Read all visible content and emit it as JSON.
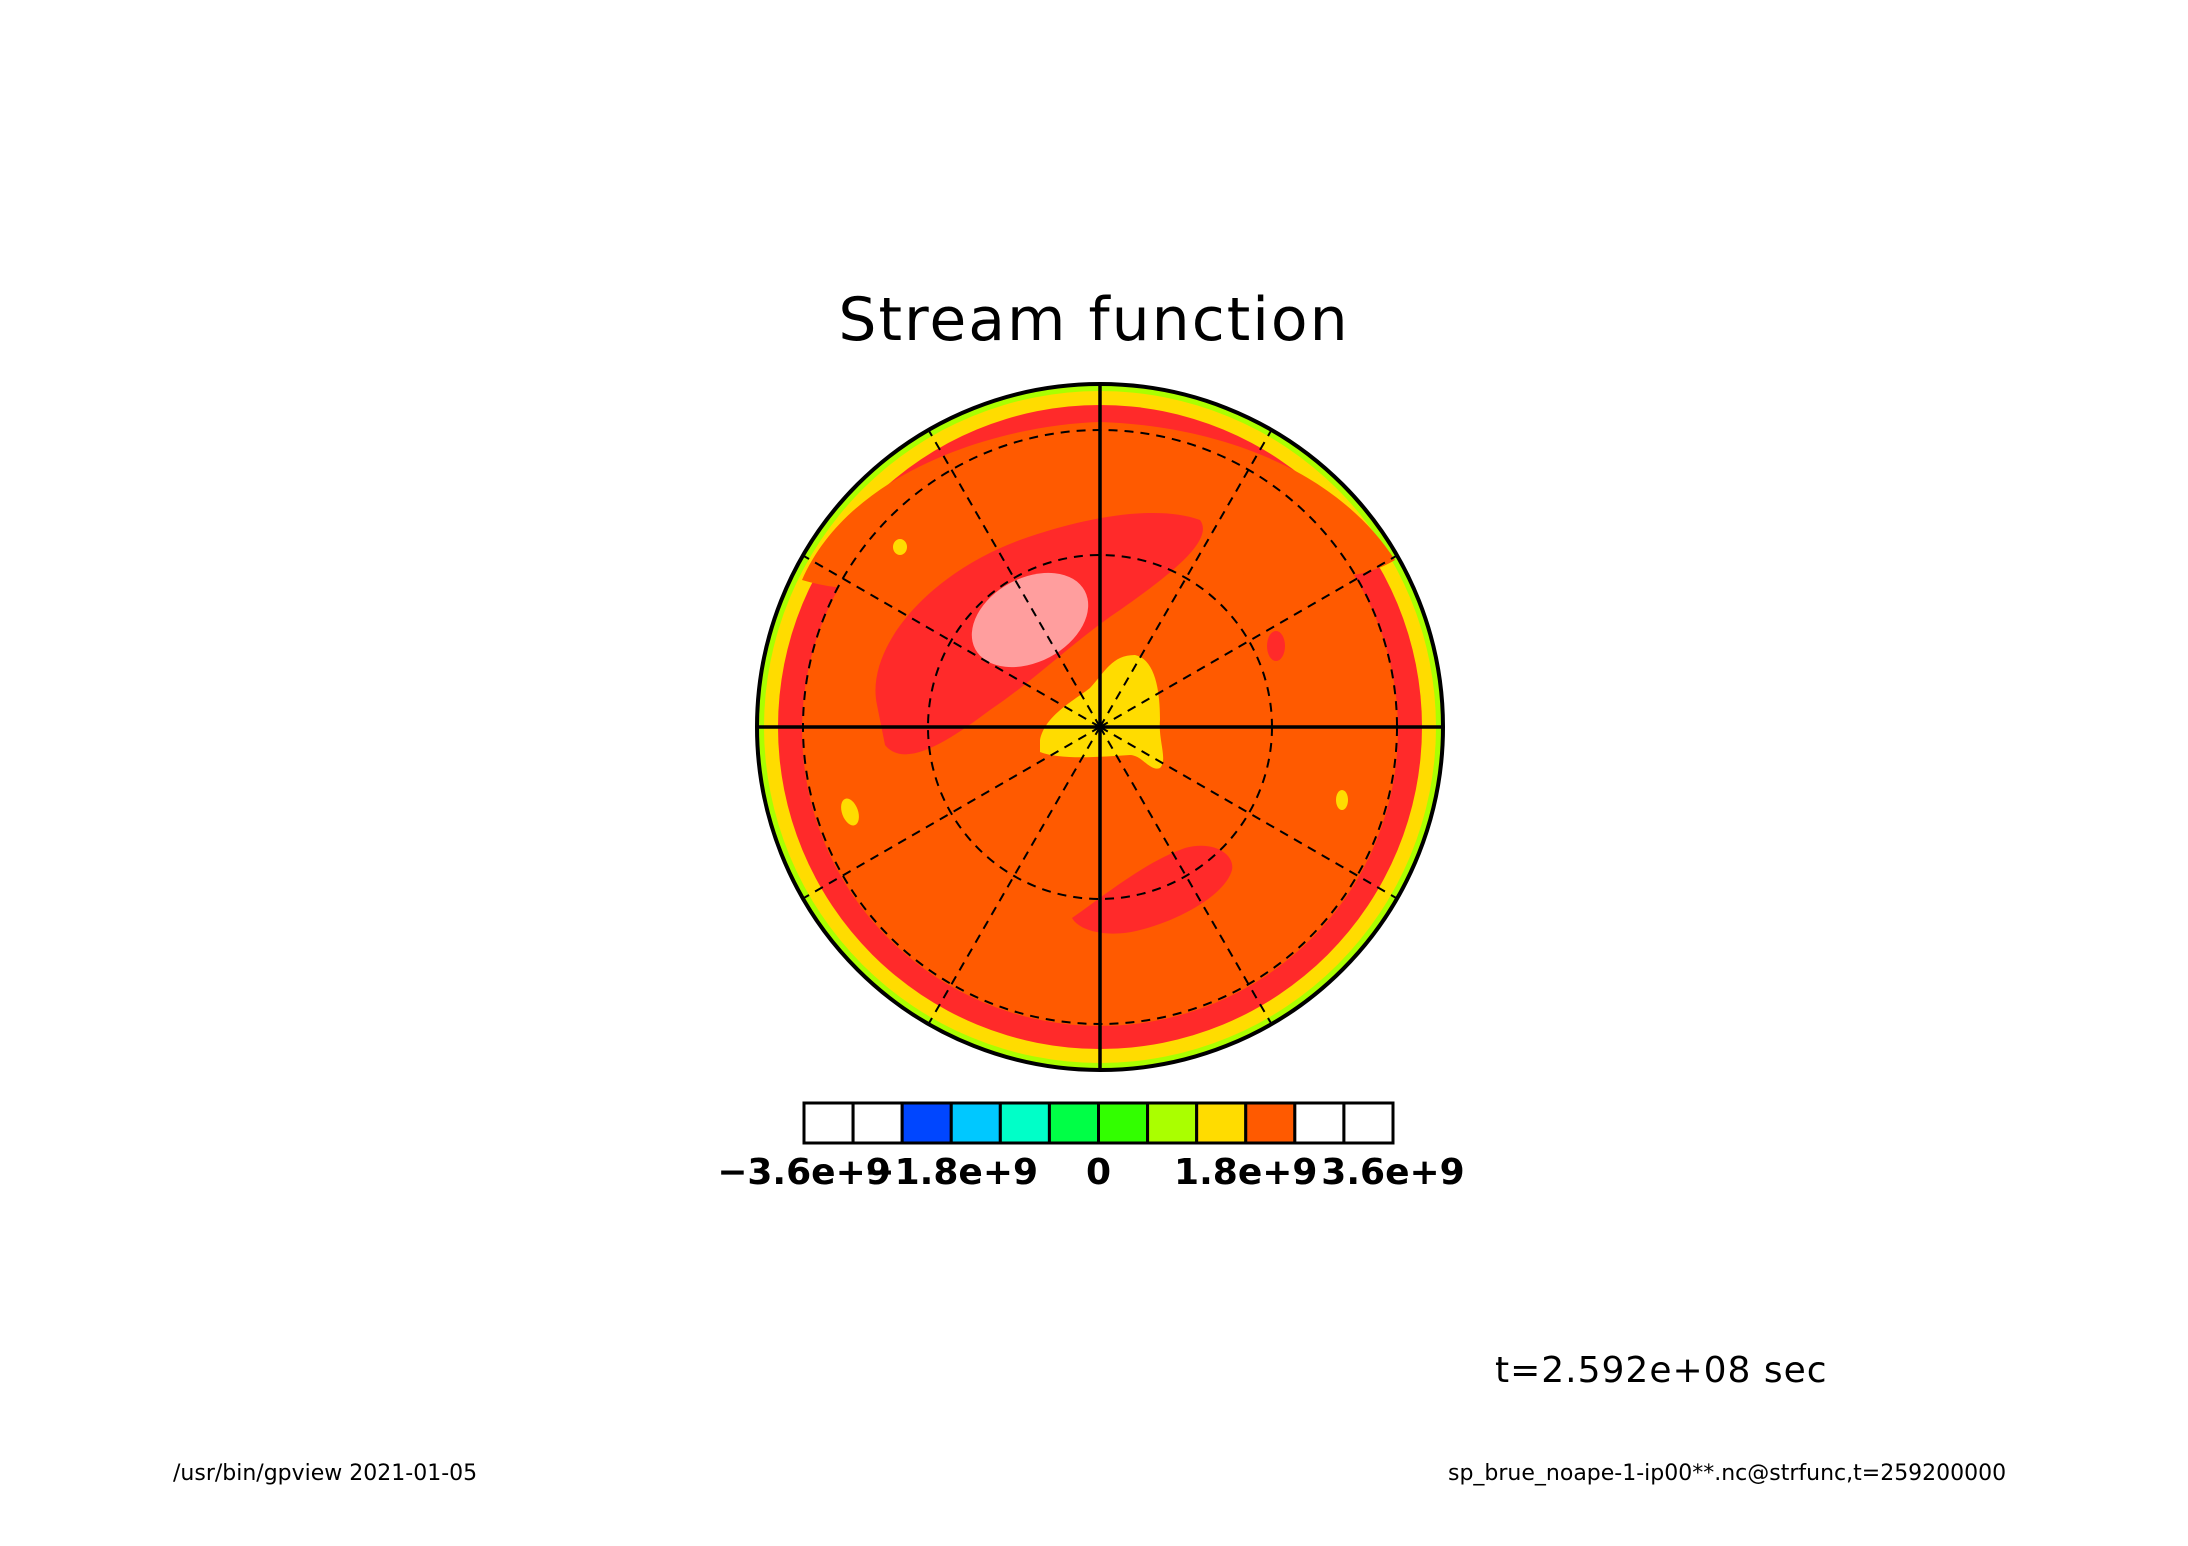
{
  "title": "Stream function",
  "time_label": "t=2.592e+08 sec",
  "footer": {
    "left": "/usr/bin/gpview  2021-01-05",
    "right": "sp_brue_noape-1-ip00**.nc@strfunc,t=259200000"
  },
  "chart_data": {
    "type": "heatmap",
    "projection": "polar",
    "title": "Stream function",
    "variable": "strfunc",
    "time_seconds": 259200000,
    "colorbar": {
      "levels": [
        -3600000000.0,
        -3000000000.0,
        -2400000000.0,
        -1800000000.0,
        -1200000000.0,
        -600000000.0,
        0,
        600000000.0,
        1200000000.0,
        1800000000.0,
        2400000000.0,
        3000000000.0,
        3600000000.0
      ],
      "colors": [
        "#ffffff",
        "#ffffff",
        "#0046ff",
        "#00c8ff",
        "#00ffc8",
        "#00ff46",
        "#32ff00",
        "#aaff00",
        "#ffdc00",
        "#ff5a00",
        "#ffffff",
        "#ffffff"
      ],
      "tick_labels": [
        {
          "value": -3600000000.0,
          "label": "−3.6e+9"
        },
        {
          "value": -1800000000.0,
          "label": "−1.8e+9"
        },
        {
          "value": 0,
          "label": "0"
        },
        {
          "value": 1800000000.0,
          "label": "1.8e+9"
        },
        {
          "value": 3600000000.0,
          "label": "3.6e+9"
        }
      ]
    },
    "field_colors": {
      "background": "#ff5a00",
      "rim_yellow": "#ffdc00",
      "rim_green": "#aaff00",
      "band_red": "#ff2a2a",
      "high_pink": "#ff9e9e",
      "low_yellow": "#ffdc00"
    },
    "grid": true
  }
}
